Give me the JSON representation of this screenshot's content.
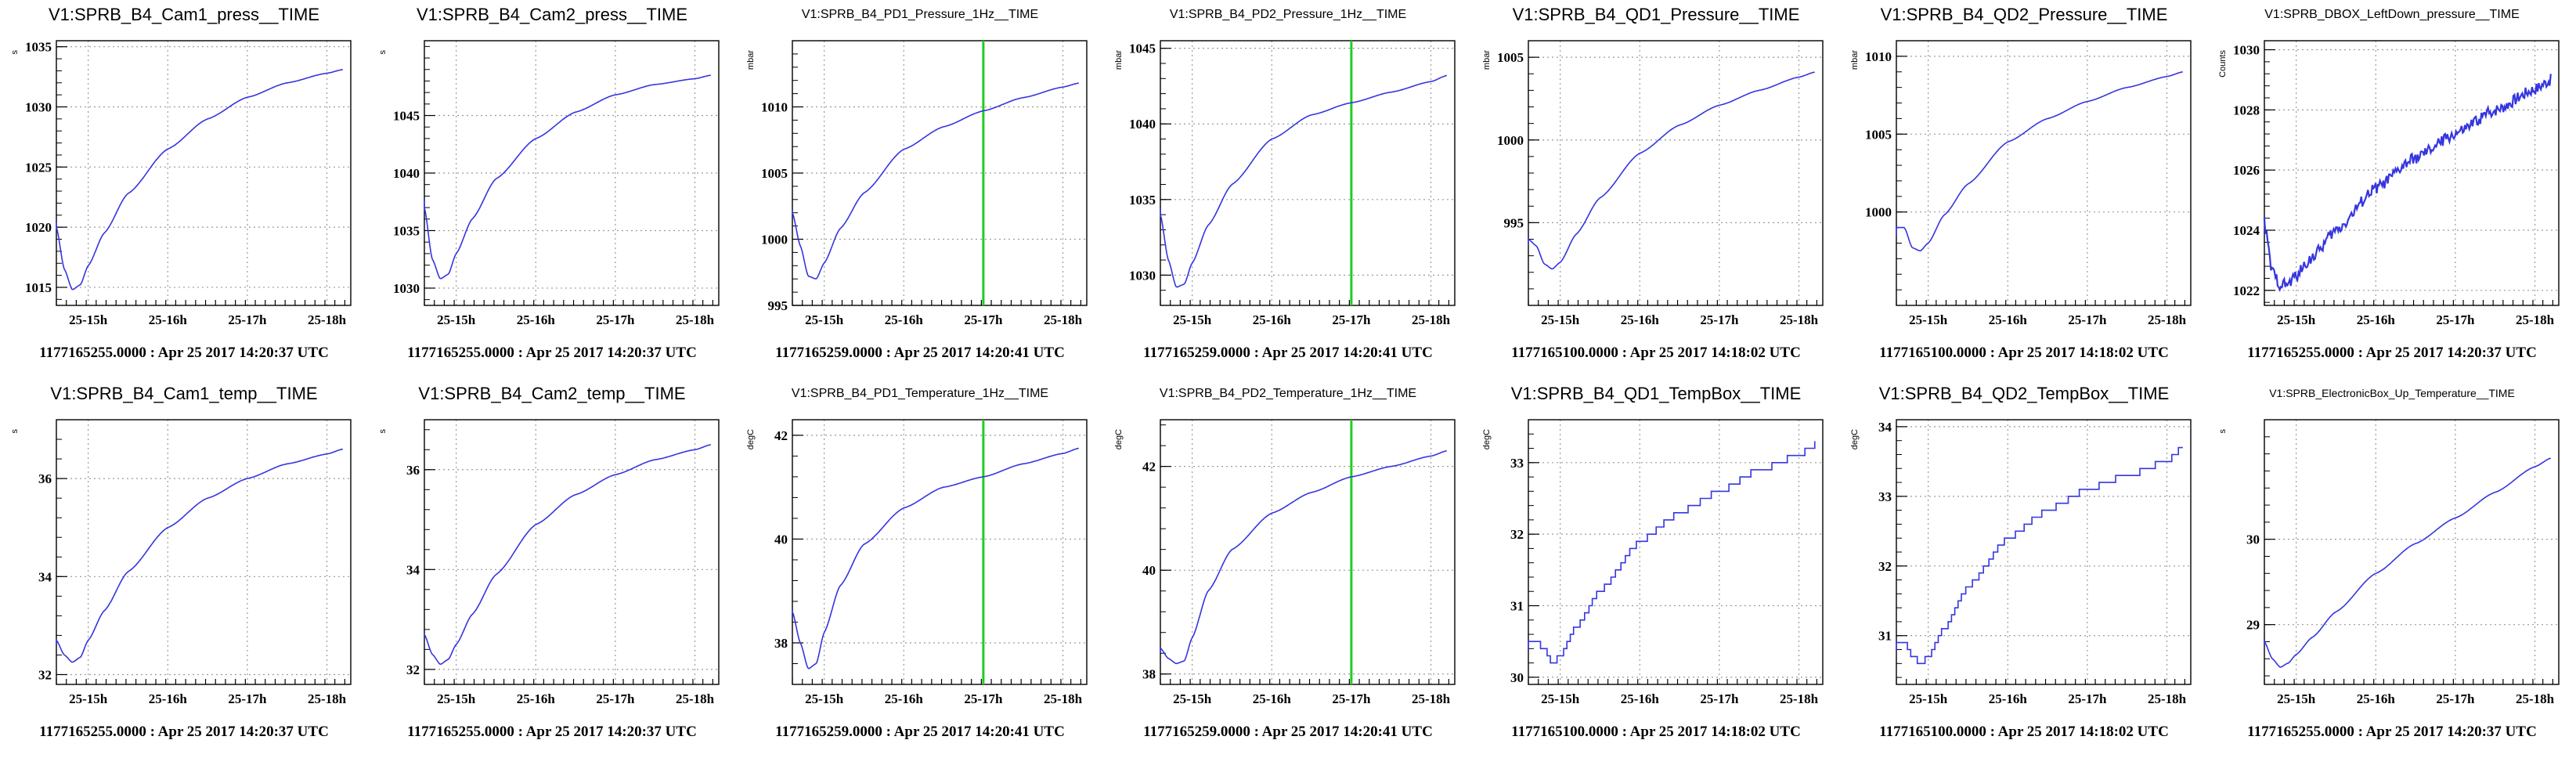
{
  "page": {
    "background": "#ffffff"
  },
  "colors": {
    "line": "#3535e0",
    "marker": "#22cc22",
    "axis": "#000000",
    "grid": "#9a9a9a"
  },
  "chart_data": [
    {
      "type": "line",
      "title": "V1:SPRB_B4_Cam1_press__TIME",
      "ylabel": "s",
      "footer": "1177165255.0000 : Apr 25 2017 14:20:37 UTC",
      "xlim": [
        14.6,
        18.3
      ],
      "ylim": [
        1013.5,
        1035.5
      ],
      "xticks": [
        "25-15h",
        "25-16h",
        "25-17h",
        "25-18h"
      ],
      "yticks": [
        1015,
        1020,
        1025,
        1030,
        1035
      ],
      "series": [
        {
          "x": [
            14.6,
            14.7,
            14.8,
            14.9,
            15.0,
            15.2,
            15.5,
            16.0,
            16.5,
            17.0,
            17.5,
            18.0,
            18.2
          ],
          "values": [
            1020,
            1016.5,
            1014.8,
            1015.2,
            1016.8,
            1019.5,
            1022.8,
            1026.5,
            1029,
            1030.8,
            1032,
            1032.8,
            1033.1
          ]
        }
      ],
      "step": false,
      "noisy": false,
      "marker": null
    },
    {
      "type": "line",
      "title": "V1:SPRB_B4_Cam2_press__TIME",
      "ylabel": "s",
      "footer": "1177165255.0000 : Apr 25 2017 14:20:37 UTC",
      "xlim": [
        14.6,
        18.3
      ],
      "ylim": [
        1028.5,
        1051.5
      ],
      "xticks": [
        "25-15h",
        "25-16h",
        "25-17h",
        "25-18h"
      ],
      "yticks": [
        1030,
        1035,
        1040,
        1045
      ],
      "series": [
        {
          "x": [
            14.6,
            14.7,
            14.8,
            14.9,
            15.0,
            15.2,
            15.5,
            16.0,
            16.5,
            17.0,
            17.5,
            18.0,
            18.2
          ],
          "values": [
            1037,
            1032.5,
            1030.8,
            1031.2,
            1033,
            1036,
            1039.5,
            1043,
            1045.3,
            1046.8,
            1047.7,
            1048.2,
            1048.5
          ]
        }
      ],
      "step": false,
      "noisy": false,
      "marker": null
    },
    {
      "type": "line",
      "title": "V1:SPRB_B4_PD1_Pressure_1Hz__TIME",
      "ylabel": "mbar",
      "footer": "1177165259.0000 : Apr 25 2017 14:20:41 UTC",
      "xlim": [
        14.6,
        18.3
      ],
      "ylim": [
        995,
        1015
      ],
      "xticks": [
        "25-15h",
        "25-16h",
        "25-17h",
        "25-18h"
      ],
      "yticks": [
        995,
        1000,
        1005,
        1010
      ],
      "series": [
        {
          "x": [
            14.6,
            14.7,
            14.8,
            14.9,
            15.0,
            15.2,
            15.5,
            16.0,
            16.5,
            17.0,
            17.5,
            18.0,
            18.2
          ],
          "values": [
            1002,
            999.5,
            997.2,
            997,
            998.2,
            1000.8,
            1003.5,
            1006.8,
            1008.5,
            1009.7,
            1010.7,
            1011.5,
            1011.8
          ]
        }
      ],
      "step": false,
      "noisy": false,
      "marker": 17.0
    },
    {
      "type": "line",
      "title": "V1:SPRB_B4_PD2_Pressure_1Hz__TIME",
      "ylabel": "mbar",
      "footer": "1177165259.0000 : Apr 25 2017 14:20:41 UTC",
      "xlim": [
        14.6,
        18.3
      ],
      "ylim": [
        1028,
        1045.5
      ],
      "xticks": [
        "25-15h",
        "25-16h",
        "25-17h",
        "25-18h"
      ],
      "yticks": [
        1030,
        1035,
        1040,
        1045
      ],
      "series": [
        {
          "x": [
            14.6,
            14.7,
            14.8,
            14.9,
            15.0,
            15.2,
            15.5,
            16.0,
            16.5,
            17.0,
            17.5,
            18.0,
            18.2
          ],
          "values": [
            1034,
            1031,
            1029.2,
            1029.4,
            1030.8,
            1033.3,
            1036,
            1039,
            1040.6,
            1041.4,
            1042.1,
            1042.8,
            1043.2
          ]
        }
      ],
      "step": false,
      "noisy": false,
      "marker": 17.0
    },
    {
      "type": "line",
      "title": "V1:SPRB_B4_QD1_Pressure__TIME",
      "ylabel": "mbar",
      "footer": "1177165100.0000 : Apr 25 2017 14:18:02 UTC",
      "xlim": [
        14.6,
        18.3
      ],
      "ylim": [
        990,
        1006
      ],
      "xticks": [
        "25-15h",
        "25-16h",
        "25-17h",
        "25-18h"
      ],
      "yticks": [
        995,
        1000,
        1005
      ],
      "series": [
        {
          "x": [
            14.6,
            14.7,
            14.8,
            14.9,
            15.0,
            15.2,
            15.5,
            16.0,
            16.5,
            17.0,
            17.5,
            18.0,
            18.2
          ],
          "values": [
            994,
            993.6,
            992.5,
            992.2,
            992.6,
            994.3,
            996.5,
            999.2,
            1000.9,
            1002.1,
            1003,
            1003.8,
            1004.1
          ]
        }
      ],
      "step": false,
      "noisy": false,
      "marker": null
    },
    {
      "type": "line",
      "title": "V1:SPRB_B4_QD2_Pressure__TIME",
      "ylabel": "mbar",
      "footer": "1177165100.0000 : Apr 25 2017 14:18:02 UTC",
      "xlim": [
        14.6,
        18.3
      ],
      "ylim": [
        994,
        1011
      ],
      "xticks": [
        "25-15h",
        "25-16h",
        "25-17h",
        "25-18h"
      ],
      "yticks": [
        1000,
        1005,
        1010
      ],
      "series": [
        {
          "x": [
            14.6,
            14.7,
            14.8,
            14.9,
            15.0,
            15.2,
            15.5,
            16.0,
            16.5,
            17.0,
            17.5,
            18.0,
            18.2
          ],
          "values": [
            999,
            999,
            997.7,
            997.5,
            998,
            999.8,
            1001.8,
            1004.5,
            1006,
            1007.1,
            1008,
            1008.7,
            1009
          ]
        }
      ],
      "step": false,
      "noisy": false,
      "marker": null
    },
    {
      "type": "line",
      "title": "V1:SPRB_DBOX_LeftDown_pressure__TIME",
      "ylabel": "Counts",
      "footer": "1177165255.0000 : Apr 25 2017 14:20:37 UTC",
      "xlim": [
        14.6,
        18.3
      ],
      "ylim": [
        1021.5,
        1030.3
      ],
      "xticks": [
        "25-15h",
        "25-16h",
        "25-17h",
        "25-18h"
      ],
      "yticks": [
        1022,
        1024,
        1026,
        1028,
        1030
      ],
      "series": [
        {
          "x": [
            14.6,
            14.7,
            14.8,
            14.9,
            15.0,
            15.2,
            15.5,
            16.0,
            16.5,
            17.0,
            17.5,
            18.0,
            18.2
          ],
          "values": [
            1024.2,
            1022.6,
            1022.2,
            1022.2,
            1022.5,
            1023.1,
            1024,
            1025.4,
            1026.4,
            1027.2,
            1028,
            1028.7,
            1029
          ]
        }
      ],
      "step": false,
      "noisy": true,
      "marker": null
    },
    {
      "type": "line",
      "title": "V1:SPRB_B4_Cam1_temp__TIME",
      "ylabel": "s",
      "footer": "1177165255.0000 : Apr 25 2017 14:20:37 UTC",
      "xlim": [
        14.6,
        18.3
      ],
      "ylim": [
        31.8,
        37.2
      ],
      "xticks": [
        "25-15h",
        "25-16h",
        "25-17h",
        "25-18h"
      ],
      "yticks": [
        32,
        34,
        36
      ],
      "series": [
        {
          "x": [
            14.6,
            14.7,
            14.8,
            14.9,
            15.0,
            15.2,
            15.5,
            16.0,
            16.5,
            17.0,
            17.5,
            18.0,
            18.2
          ],
          "values": [
            32.7,
            32.4,
            32.25,
            32.35,
            32.7,
            33.3,
            34.1,
            35,
            35.6,
            36,
            36.3,
            36.5,
            36.6
          ]
        }
      ],
      "step": false,
      "noisy": false,
      "marker": null
    },
    {
      "type": "line",
      "title": "V1:SPRB_B4_Cam2_temp__TIME",
      "ylabel": "s",
      "footer": "1177165255.0000 : Apr 25 2017 14:20:37 UTC",
      "xlim": [
        14.6,
        18.3
      ],
      "ylim": [
        31.7,
        37.0
      ],
      "xticks": [
        "25-15h",
        "25-16h",
        "25-17h",
        "25-18h"
      ],
      "yticks": [
        32,
        34,
        36
      ],
      "series": [
        {
          "x": [
            14.6,
            14.7,
            14.8,
            14.9,
            15.0,
            15.2,
            15.5,
            16.0,
            16.5,
            17.0,
            17.5,
            18.0,
            18.2
          ],
          "values": [
            32.7,
            32.3,
            32.1,
            32.2,
            32.5,
            33.1,
            33.9,
            34.9,
            35.5,
            35.9,
            36.2,
            36.4,
            36.5
          ]
        }
      ],
      "step": false,
      "noisy": false,
      "marker": null
    },
    {
      "type": "line",
      "title": "V1:SPRB_B4_PD1_Temperature_1Hz__TIME",
      "ylabel": "degC",
      "footer": "1177165259.0000 : Apr 25 2017 14:20:41 UTC",
      "xlim": [
        14.6,
        18.3
      ],
      "ylim": [
        37.2,
        42.3
      ],
      "xticks": [
        "25-15h",
        "25-16h",
        "25-17h",
        "25-18h"
      ],
      "yticks": [
        38,
        40,
        42
      ],
      "series": [
        {
          "x": [
            14.6,
            14.7,
            14.8,
            14.9,
            15.0,
            15.2,
            15.5,
            16.0,
            16.5,
            17.0,
            17.5,
            18.0,
            18.2
          ],
          "values": [
            38.6,
            38,
            37.5,
            37.6,
            38.2,
            39.1,
            39.9,
            40.6,
            41,
            41.2,
            41.45,
            41.65,
            41.75
          ]
        }
      ],
      "step": false,
      "noisy": false,
      "marker": 17.0
    },
    {
      "type": "line",
      "title": "V1:SPRB_B4_PD2_Temperature_1Hz__TIME",
      "ylabel": "degC",
      "footer": "1177165259.0000 : Apr 25 2017 14:20:41 UTC",
      "xlim": [
        14.6,
        18.3
      ],
      "ylim": [
        37.8,
        42.9
      ],
      "xticks": [
        "25-15h",
        "25-16h",
        "25-17h",
        "25-18h"
      ],
      "yticks": [
        38,
        40,
        42
      ],
      "series": [
        {
          "x": [
            14.6,
            14.7,
            14.8,
            14.9,
            15.0,
            15.2,
            15.5,
            16.0,
            16.5,
            17.0,
            17.5,
            18.0,
            18.2
          ],
          "values": [
            38.5,
            38.3,
            38.2,
            38.25,
            38.7,
            39.6,
            40.4,
            41.1,
            41.5,
            41.8,
            42,
            42.2,
            42.3
          ]
        }
      ],
      "step": false,
      "noisy": false,
      "marker": 17.0
    },
    {
      "type": "line",
      "title": "V1:SPRB_B4_QD1_TempBox__TIME",
      "ylabel": "degC",
      "footer": "1177165100.0000 : Apr 25 2017 14:18:02 UTC",
      "xlim": [
        14.6,
        18.3
      ],
      "ylim": [
        29.9,
        33.6
      ],
      "xticks": [
        "25-15h",
        "25-16h",
        "25-17h",
        "25-18h"
      ],
      "yticks": [
        30,
        31,
        32,
        33
      ],
      "series": [
        {
          "x": [
            14.6,
            14.7,
            14.8,
            14.9,
            15.0,
            15.2,
            15.5,
            16.0,
            16.5,
            17.0,
            17.5,
            18.0,
            18.2
          ],
          "values": [
            30.5,
            30.5,
            30.4,
            30.2,
            30.3,
            30.7,
            31.2,
            31.9,
            32.3,
            32.6,
            32.9,
            33.1,
            33.25
          ]
        }
      ],
      "step": true,
      "noisy": false,
      "marker": null
    },
    {
      "type": "line",
      "title": "V1:SPRB_B4_QD2_TempBox__TIME",
      "ylabel": "degC",
      "footer": "1177165100.0000 : Apr 25 2017 14:18:02 UTC",
      "xlim": [
        14.6,
        18.3
      ],
      "ylim": [
        30.3,
        34.1
      ],
      "xticks": [
        "25-15h",
        "25-16h",
        "25-17h",
        "25-18h"
      ],
      "yticks": [
        31,
        32,
        33,
        34
      ],
      "series": [
        {
          "x": [
            14.6,
            14.7,
            14.8,
            14.9,
            15.0,
            15.2,
            15.5,
            16.0,
            16.5,
            17.0,
            17.5,
            18.0,
            18.2
          ],
          "values": [
            30.9,
            30.9,
            30.7,
            30.6,
            30.7,
            31.1,
            31.7,
            32.4,
            32.8,
            33.1,
            33.3,
            33.5,
            33.7
          ]
        }
      ],
      "step": true,
      "noisy": false,
      "marker": null
    },
    {
      "type": "line",
      "title": "V1:SPRB_ElectronicBox_Up_Temperature__TIME",
      "ylabel": "s",
      "footer": "1177165255.0000 : Apr 25 2017 14:20:37 UTC",
      "xlim": [
        14.6,
        18.3
      ],
      "ylim": [
        28.3,
        31.4
      ],
      "xticks": [
        "25-15h",
        "25-16h",
        "25-17h",
        "25-18h"
      ],
      "yticks": [
        29,
        30
      ],
      "series": [
        {
          "x": [
            14.6,
            14.7,
            14.8,
            14.9,
            15.0,
            15.2,
            15.5,
            16.0,
            16.5,
            17.0,
            17.5,
            18.0,
            18.2
          ],
          "values": [
            28.8,
            28.6,
            28.5,
            28.55,
            28.65,
            28.85,
            29.15,
            29.6,
            29.95,
            30.25,
            30.55,
            30.85,
            30.95
          ]
        }
      ],
      "step": false,
      "noisy": false,
      "marker": null
    }
  ]
}
